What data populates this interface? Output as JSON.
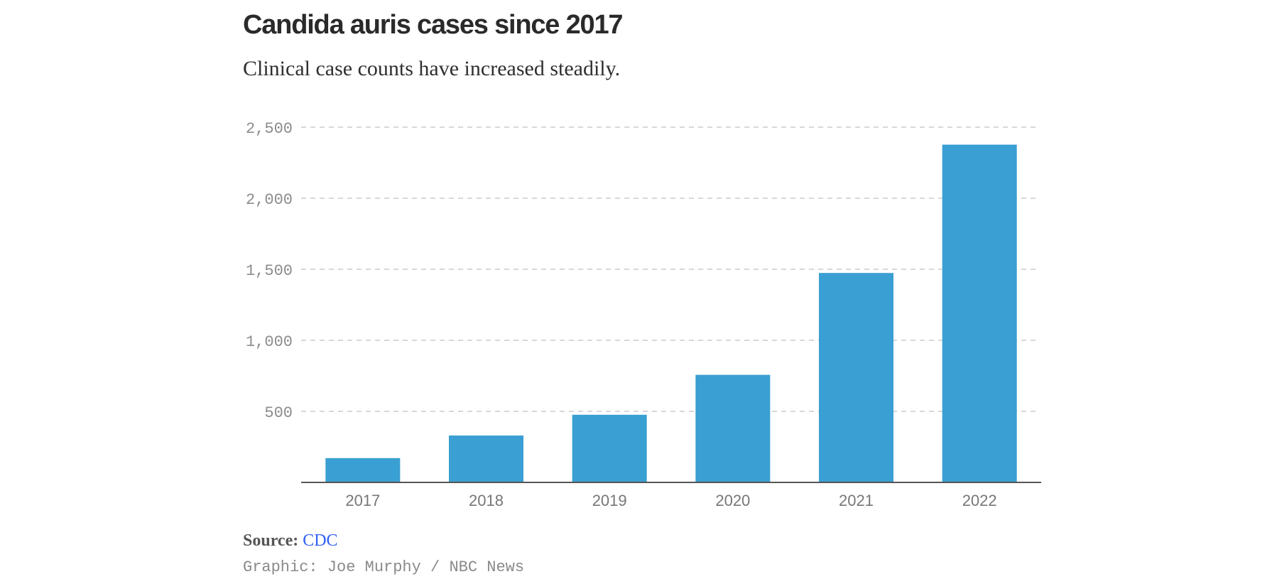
{
  "header": {
    "title": "Candida auris cases since 2017",
    "subtitle": "Clinical case counts have increased steadily."
  },
  "footer": {
    "source_label": "Source:",
    "source_link": "CDC",
    "credit": "Graphic: Joe Murphy / NBC News"
  },
  "colors": {
    "bar": "#3a9fd2",
    "grid": "#cccccc",
    "axis": "#555555",
    "tick_text": "#8c8c8c"
  },
  "chart_data": {
    "type": "bar",
    "title": "Candida auris cases since 2017",
    "subtitle": "Clinical case counts have increased steadily.",
    "categories": [
      "2017",
      "2018",
      "2019",
      "2020",
      "2021",
      "2022"
    ],
    "values": [
      171,
      330,
      476,
      757,
      1474,
      2377
    ],
    "xlabel": "",
    "ylabel": "",
    "ylim": [
      0,
      2500
    ],
    "yticks": [
      500,
      1000,
      1500,
      2000,
      2500
    ],
    "ytick_labels": [
      "500",
      "1,000",
      "1,500",
      "2,000",
      "2,500"
    ],
    "grid": true
  }
}
